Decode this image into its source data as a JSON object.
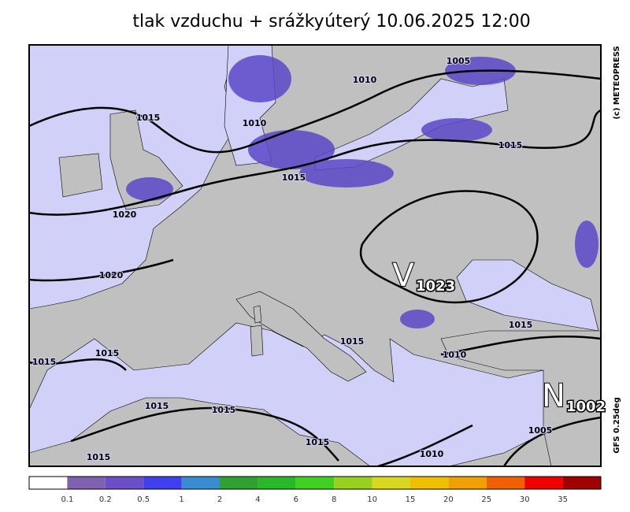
{
  "header": {
    "title": "tlak vzduchu + srážky",
    "datetime": "úterý 10.06.2025 12:00"
  },
  "side": {
    "copyright": "(c) METEOPRESS",
    "model": "GFS 0.25deg"
  },
  "centers": [
    {
      "letter": "V",
      "value": "1023"
    },
    {
      "letter": "N",
      "value": "1002"
    }
  ],
  "isobar_labels": [
    "1005",
    "1010",
    "1010",
    "1015",
    "1015",
    "1015",
    "1020",
    "1020",
    "1015",
    "1015",
    "1015",
    "1015",
    "1010",
    "1015",
    "1015",
    "1005",
    "1015",
    "1015",
    "1010"
  ],
  "legend": {
    "colors": [
      "#ffffff",
      "#8060b0",
      "#6a4fc8",
      "#4040f0",
      "#3a8cd0",
      "#30a030",
      "#28b828",
      "#40d020",
      "#98d020",
      "#d8d820",
      "#f0c000",
      "#f0a000",
      "#f06000",
      "#f00000",
      "#a00000"
    ],
    "ticks": [
      0.1,
      0.2,
      0.5,
      1,
      2,
      4,
      6,
      8,
      10,
      15,
      20,
      25,
      30,
      35
    ]
  }
}
